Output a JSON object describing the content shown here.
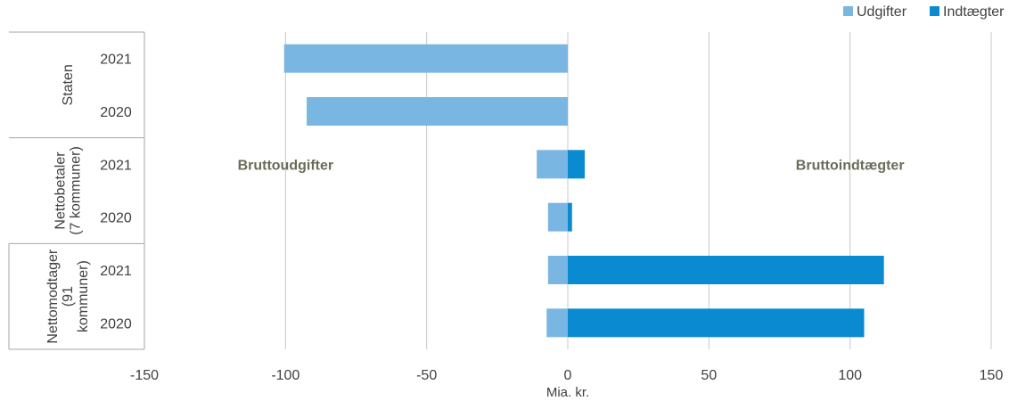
{
  "chart_data": {
    "type": "bar",
    "orientation": "horizontal",
    "stacked": true,
    "xlabel": "Mia. kr.",
    "xlim": [
      -150,
      150
    ],
    "xticks": [
      -150,
      -100,
      -50,
      0,
      50,
      100,
      150
    ],
    "grid": true,
    "legend_position": "top-right",
    "groups": [
      {
        "label": "Staten",
        "categories": [
          "2021",
          "2020"
        ]
      },
      {
        "label": "Nettobetaler\n(7 kommuner)",
        "categories": [
          "2021",
          "2020"
        ]
      },
      {
        "label": "Nettomodtager\n(91\nkommuner)",
        "categories": [
          "2021",
          "2020"
        ]
      }
    ],
    "series": [
      {
        "name": "Udgifter",
        "color": "#7ab6e2",
        "values": [
          -100.5,
          -92.5,
          -11,
          -7,
          -7,
          -7.5
        ]
      },
      {
        "name": "Indtægter",
        "color": "#0a8ad0",
        "values": [
          0,
          0,
          6,
          1.5,
          112,
          105
        ]
      }
    ],
    "annotations": [
      {
        "text": "Bruttoudgifter",
        "x": -100,
        "y_between": [
          "Nettobetaler 2021",
          "Nettobetaler 2020"
        ]
      },
      {
        "text": "Bruttoindtægter",
        "x": 100,
        "y_between": [
          "Nettobetaler 2021",
          "Nettobetaler 2020"
        ]
      }
    ]
  }
}
